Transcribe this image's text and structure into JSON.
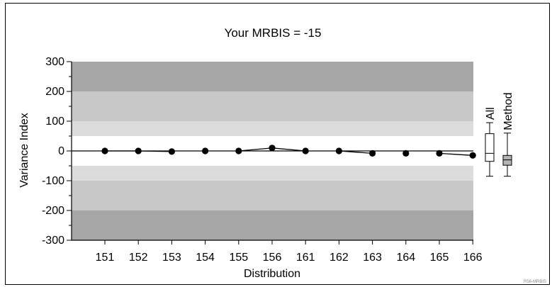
{
  "chart_data": {
    "type": "line",
    "title": "Your MRBIS = -15",
    "xlabel": "Distribution",
    "ylabel": "Variance Index",
    "categories": [
      "151",
      "152",
      "153",
      "154",
      "155",
      "156",
      "161",
      "162",
      "163",
      "164",
      "165",
      "166"
    ],
    "series": [
      {
        "values": [
          0,
          0,
          -2,
          0,
          0,
          10,
          0,
          0,
          -8,
          -8,
          -8,
          -15
        ],
        "connected": [
          true,
          true,
          false,
          false,
          true,
          true,
          false,
          true,
          false,
          false,
          true
        ],
        "color": "#000000"
      }
    ],
    "ylim": [
      -300,
      300
    ],
    "yticks": [
      300,
      200,
      100,
      0,
      -100,
      -200,
      -300
    ],
    "bands": [
      {
        "from": 200,
        "to": 300,
        "color": "#a6a6a6"
      },
      {
        "from": 100,
        "to": 200,
        "color": "#c8c8c8"
      },
      {
        "from": 50,
        "to": 100,
        "color": "#dcdcdc"
      },
      {
        "from": -50,
        "to": 50,
        "color": "#ffffff"
      },
      {
        "from": -100,
        "to": -50,
        "color": "#dcdcdc"
      },
      {
        "from": -200,
        "to": -100,
        "color": "#c8c8c8"
      },
      {
        "from": -300,
        "to": -200,
        "color": "#a6a6a6"
      }
    ],
    "boxplots": [
      {
        "label": "All",
        "min": -85,
        "q1": -35,
        "median": -8,
        "q3": 58,
        "max": 95,
        "fill": "#ffffff"
      },
      {
        "label": "Method",
        "min": -85,
        "q1": -48,
        "median": -30,
        "q3": -15,
        "max": 60,
        "fill": "#b4b4b4"
      }
    ],
    "footnote": "R56-MRBIS"
  }
}
